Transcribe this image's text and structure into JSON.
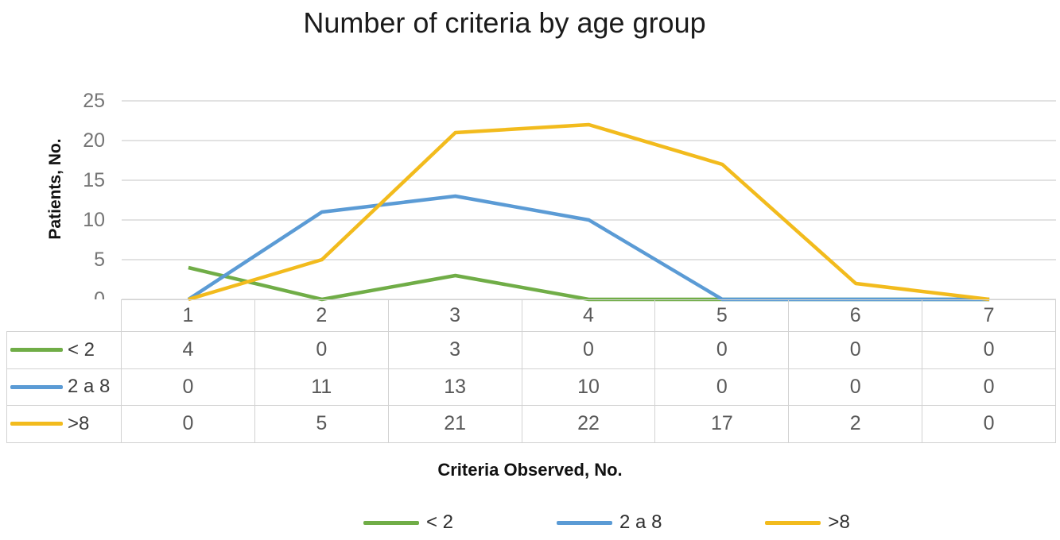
{
  "title": "Number of criteria by age group",
  "colors": {
    "series_green": "#70AD47",
    "series_blue": "#5B9BD5",
    "series_gold": "#F2BB1D",
    "gridline": "#D9D9D9",
    "table_border": "#D2D2D2",
    "tick_text": "#757575",
    "table_text": "#595959",
    "title_text": "#1B1B1B"
  },
  "chart_data": {
    "type": "line",
    "title": "Number of criteria by age group",
    "xlabel": "Criteria Observed, No.",
    "ylabel": "Patients, No.",
    "categories": [
      "1",
      "2",
      "3",
      "4",
      "5",
      "6",
      "7"
    ],
    "ylim": [
      0,
      25
    ],
    "yticks": [
      0,
      5,
      10,
      15,
      20,
      25
    ],
    "grid": "horizontal",
    "legend_position": "bottom",
    "series": [
      {
        "name": "< 2",
        "color": "#70AD47",
        "values": [
          4,
          0,
          3,
          0,
          0,
          0,
          0
        ]
      },
      {
        "name": "2 a 8",
        "color": "#5B9BD5",
        "values": [
          0,
          11,
          13,
          10,
          0,
          0,
          0
        ]
      },
      {
        "name": ">8",
        "color": "#F2BB1D",
        "values": [
          0,
          5,
          21,
          22,
          17,
          2,
          0
        ]
      }
    ]
  }
}
